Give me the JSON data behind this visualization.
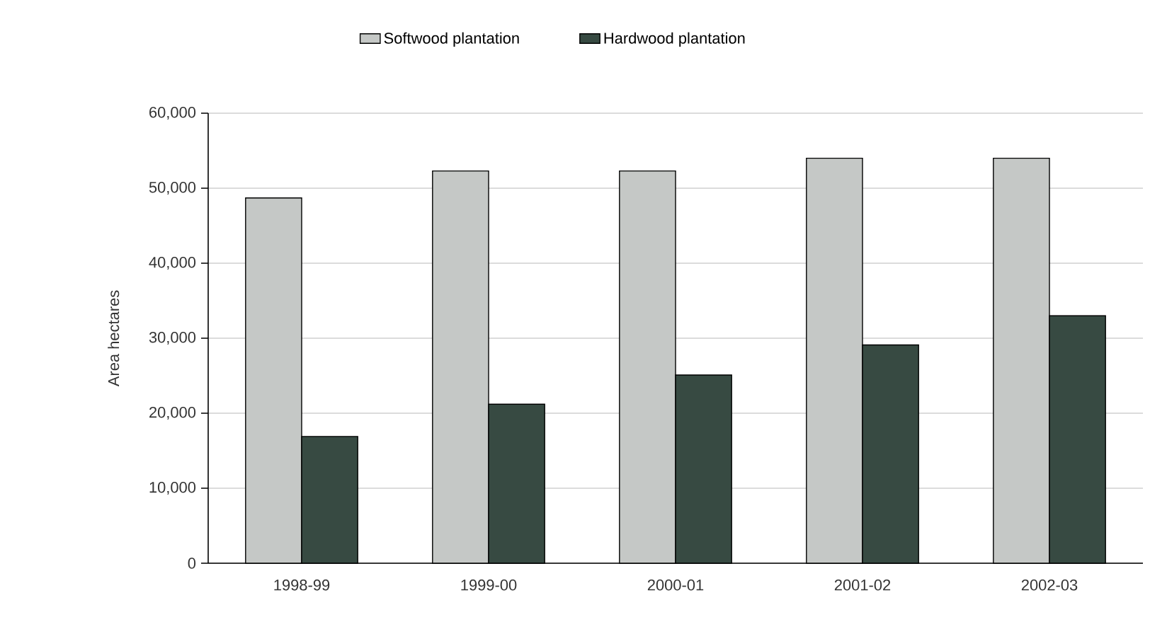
{
  "chart_data": {
    "type": "bar",
    "ylabel": "Area hectares",
    "categories": [
      "1998-99",
      "1999-00",
      "2000-01",
      "2001-02",
      "2002-03"
    ],
    "series": [
      {
        "name": "Softwood plantation",
        "color": "#c5c8c6",
        "values": [
          48700,
          52300,
          52300,
          54000,
          54000
        ]
      },
      {
        "name": "Hardwood plantation",
        "color": "#374a42",
        "values": [
          16900,
          21200,
          25100,
          29100,
          33000
        ]
      }
    ],
    "ylim": [
      0,
      60000
    ],
    "yticks": [
      0,
      {
        "value": 10000,
        "label": "10,000"
      },
      {
        "value": 20000,
        "label": "20,000"
      },
      {
        "value": 30000,
        "label": "30,000"
      },
      {
        "value": 40000,
        "label": "40,000"
      },
      {
        "value": 50000,
        "label": "50,000"
      },
      {
        "value": 60000,
        "label": "60,000"
      }
    ],
    "grid": "y",
    "legend": "top"
  }
}
